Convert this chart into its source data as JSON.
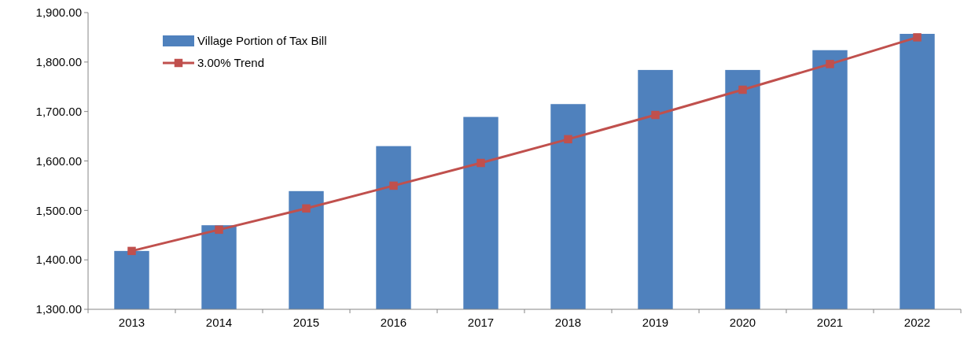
{
  "chart_data": {
    "type": "bar",
    "categories": [
      "2013",
      "2014",
      "2015",
      "2016",
      "2017",
      "2018",
      "2019",
      "2020",
      "2021",
      "2022"
    ],
    "series": [
      {
        "name": "Village Portion of Tax Bill",
        "color": "#4f81bd",
        "values": [
          1418,
          1470,
          1539,
          1630,
          1689,
          1715,
          1784,
          1784,
          1824,
          1857
        ]
      },
      {
        "name": "3.00% Trend",
        "type": "line",
        "color": "#c0504d",
        "marker": "square",
        "values": [
          1418,
          1461,
          1504,
          1550,
          1596,
          1644,
          1693,
          1744,
          1796,
          1850
        ]
      }
    ],
    "ylim": [
      1300,
      1900
    ],
    "yticks": [
      {
        "value": 1300,
        "label": "1,300.00"
      },
      {
        "value": 1400,
        "label": "1,400.00"
      },
      {
        "value": 1500,
        "label": "1,500.00"
      },
      {
        "value": 1600,
        "label": "1,600.00"
      },
      {
        "value": 1700,
        "label": "1,700.00"
      },
      {
        "value": 1800,
        "label": "1,800.00"
      },
      {
        "value": 1900,
        "label": "1,900.00"
      }
    ],
    "grid": false,
    "legend": "top left"
  }
}
